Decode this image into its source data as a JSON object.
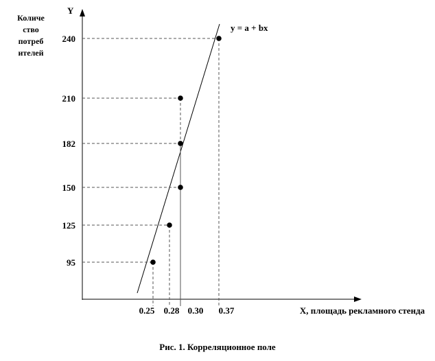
{
  "chart_data": {
    "type": "scatter",
    "title": "",
    "caption": "Рис. 1. Корреляционное поле",
    "xlabel": "X, площадь рекламного стенда",
    "ylabel_letter": "Y",
    "ylabel": "Количе ство потреб ителей",
    "x_ticks": [
      "0.25",
      "0.28",
      "0.30",
      "0.37"
    ],
    "y_ticks": [
      "95",
      "125",
      "150",
      "182",
      "210",
      "240"
    ],
    "points": [
      {
        "x": 0.25,
        "y": 95
      },
      {
        "x": 0.28,
        "y": 125
      },
      {
        "x": 0.3,
        "y": 150
      },
      {
        "x": 0.3,
        "y": 182
      },
      {
        "x": 0.3,
        "y": 210
      },
      {
        "x": 0.37,
        "y": 240
      }
    ],
    "regression_label": "y = a + bx",
    "grid": false,
    "colors": {
      "ink": "#000000",
      "guide": "#555555"
    }
  }
}
